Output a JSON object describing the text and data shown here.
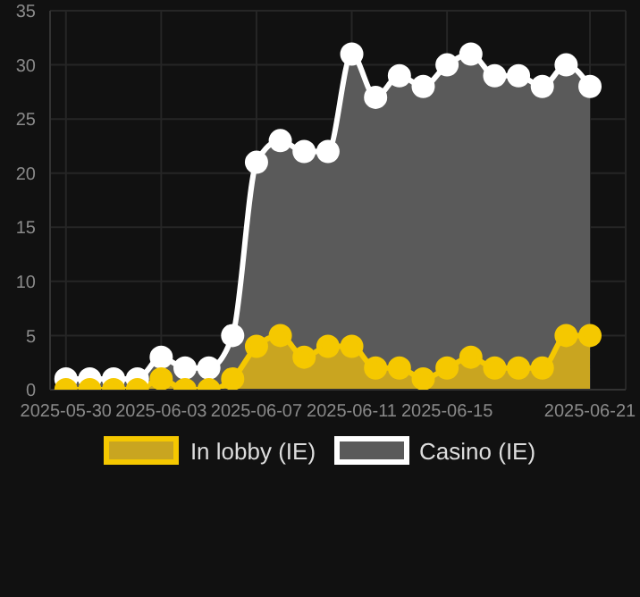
{
  "chart_data": {
    "type": "area",
    "x": [
      "2025-05-30",
      "2025-05-31",
      "2025-06-01",
      "2025-06-02",
      "2025-06-03",
      "2025-06-04",
      "2025-06-05",
      "2025-06-06",
      "2025-06-07",
      "2025-06-08",
      "2025-06-09",
      "2025-06-10",
      "2025-06-11",
      "2025-06-12",
      "2025-06-13",
      "2025-06-14",
      "2025-06-15",
      "2025-06-16",
      "2025-06-17",
      "2025-06-18",
      "2025-06-19",
      "2025-06-20",
      "2025-06-21"
    ],
    "series": [
      {
        "name": "In lobby (IE)",
        "color": "#f5c800",
        "values": [
          0,
          0,
          0,
          0,
          1,
          0,
          0,
          1,
          4,
          5,
          3,
          4,
          4,
          2,
          2,
          1,
          2,
          3,
          2,
          2,
          2,
          5,
          5
        ]
      },
      {
        "name": "Casino (IE)",
        "color": "#ffffff",
        "values": [
          1,
          1,
          1,
          1,
          3,
          2,
          2,
          5,
          21,
          23,
          22,
          22,
          31,
          27,
          29,
          28,
          30,
          31,
          29,
          29,
          28,
          30,
          28
        ]
      }
    ],
    "xlim": [
      "2025-05-29T08:00",
      "2025-06-22T12:00"
    ],
    "xticks": [
      "2025-05-30",
      "2025-06-03",
      "2025-06-07",
      "2025-06-11",
      "2025-06-15",
      "2025-06-21"
    ],
    "ylim": [
      0,
      35
    ],
    "yticks": [
      0,
      5,
      10,
      15,
      20,
      25,
      30,
      35
    ],
    "grid": true,
    "legend": "bottom",
    "marker": "circle"
  }
}
